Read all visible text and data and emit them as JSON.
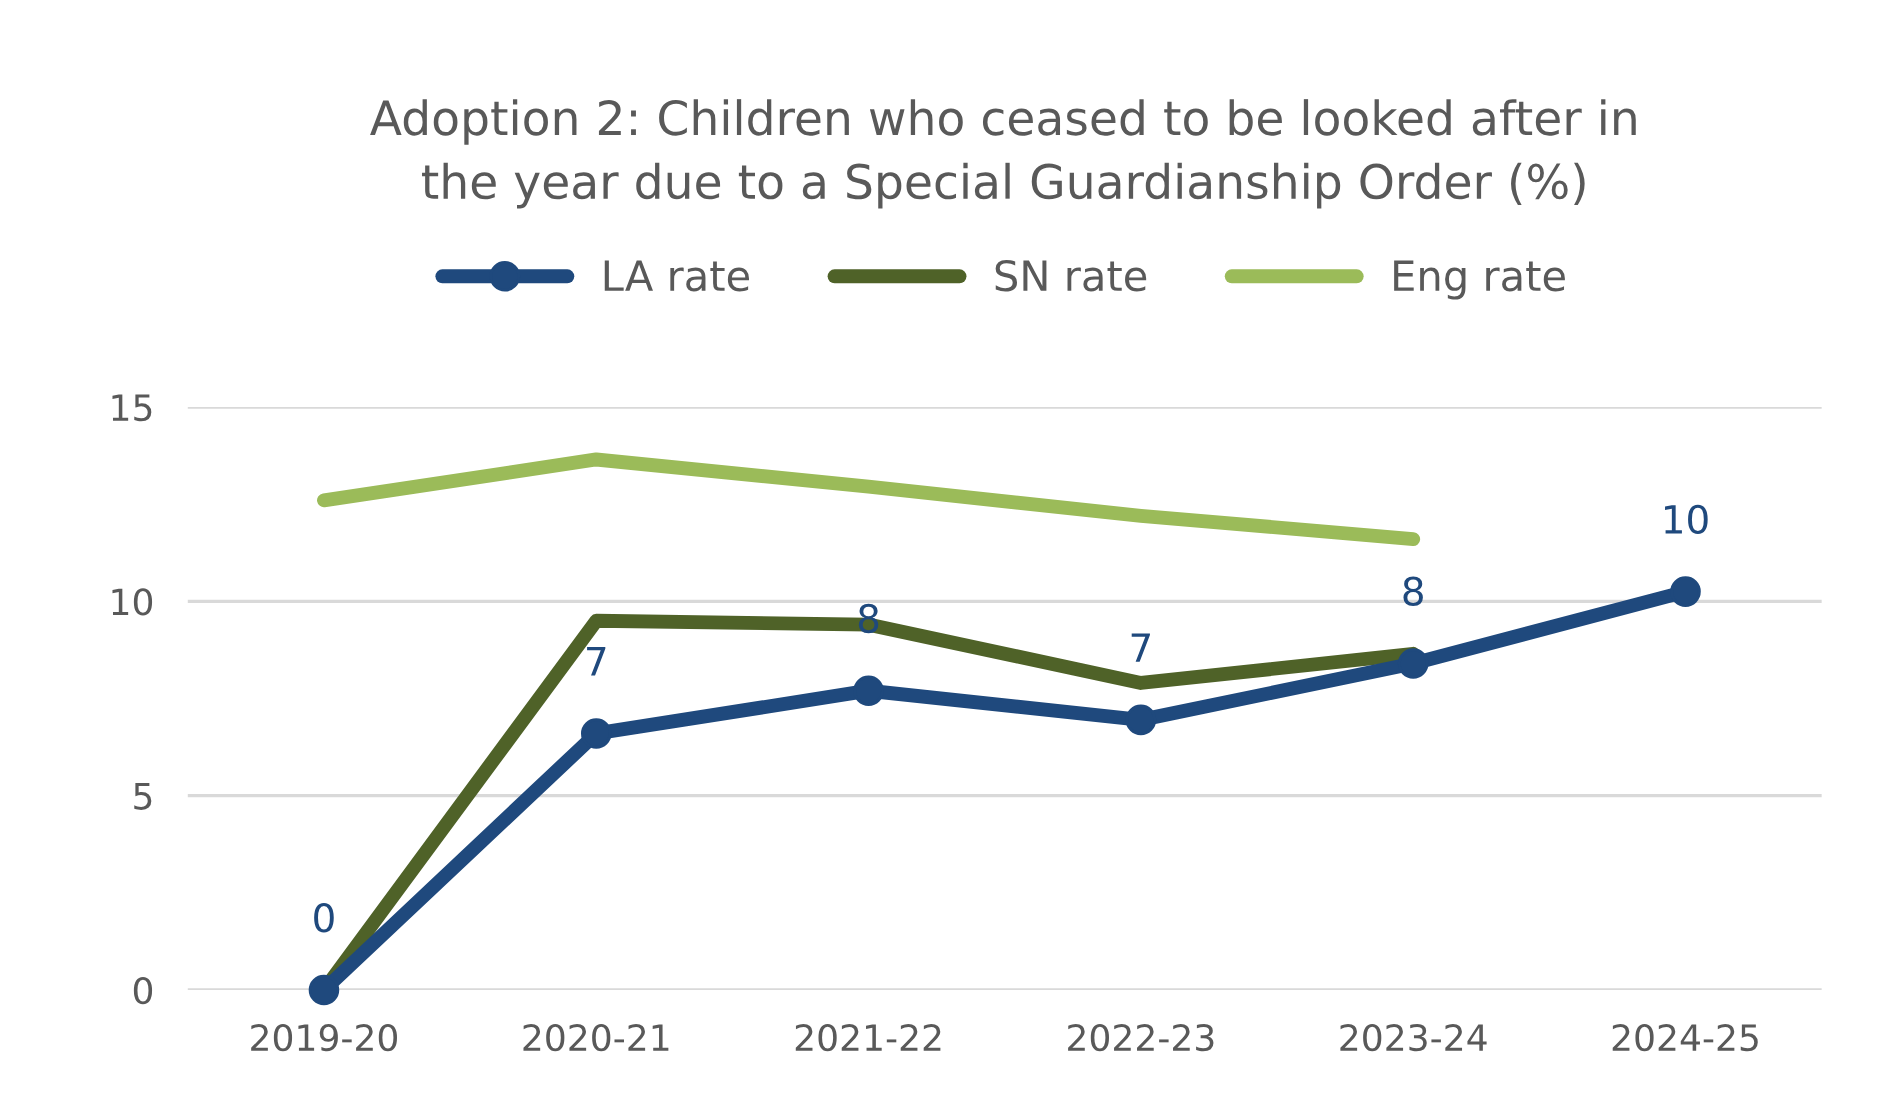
{
  "chart_data": {
    "type": "line",
    "title": "Adoption 2: Children who ceased to be looked after in\nthe year due to a Special Guardianship Order (%)",
    "categories": [
      "2019-20",
      "2020-21",
      "2021-22",
      "2022-23",
      "2023-24",
      "2024-25"
    ],
    "series": [
      {
        "name": "LA rate",
        "color": "#1f497d",
        "marker": "circle",
        "values": [
          0,
          6.6,
          7.7,
          6.95,
          8.4,
          10.25
        ],
        "value_labels": [
          "0",
          "7",
          "8",
          "7",
          "8",
          "10"
        ]
      },
      {
        "name": "SN rate",
        "color": "#4f6228",
        "marker": "none",
        "values": [
          0,
          9.5,
          9.4,
          7.9,
          8.65,
          null
        ]
      },
      {
        "name": "Eng rate",
        "color": "#9bbb59",
        "marker": "none",
        "values": [
          12.6,
          13.65,
          12.95,
          12.2,
          11.6,
          null
        ]
      }
    ],
    "ylim": [
      0,
      15
    ],
    "yticks": [
      0,
      5,
      10,
      15
    ],
    "grid": "y",
    "legend": "top"
  }
}
